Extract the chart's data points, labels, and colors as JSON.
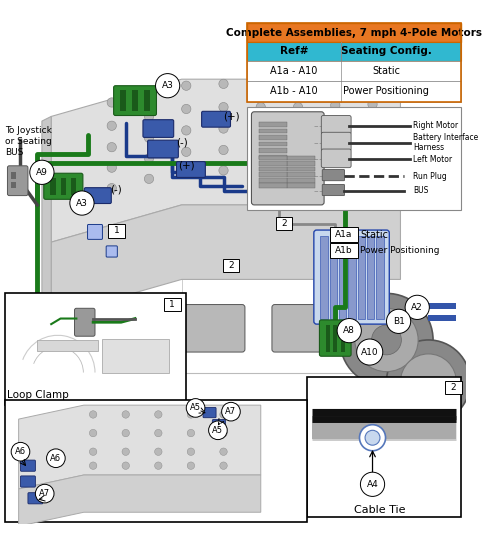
{
  "fig_width": 5.0,
  "fig_height": 5.43,
  "dpi": 100,
  "bg_color": "#ffffff",
  "table_title": "Complete Assemblies, 7 mph 4-Pole Motors",
  "table_title_bg": "#e87722",
  "table_header_bg": "#30b8d0",
  "table_rows": [
    [
      "A1a - A10",
      "Static"
    ],
    [
      "A1b - A10",
      "Power Positioning"
    ]
  ],
  "wire_green": "#1a7a1a",
  "wire_blue": "#1a3a8a",
  "wire_gray": "#777777",
  "wire_black": "#111111",
  "connector_green": "#2d8a2d",
  "connector_blue": "#3a5aaa",
  "light_gray": "#c8c8c8",
  "mid_gray": "#999999",
  "dark_gray": "#555555",
  "bg_diagram": "#f0f0f0"
}
